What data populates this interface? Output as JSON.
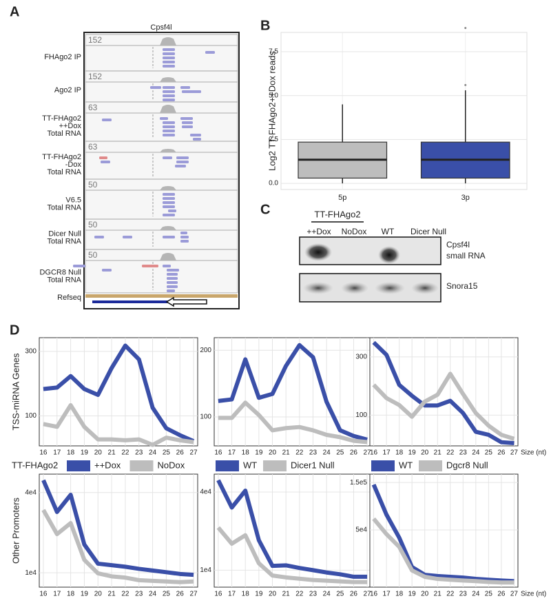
{
  "panel_labels": [
    "A",
    "B",
    "C",
    "D"
  ],
  "browser": {
    "title": "Cpsf4l",
    "refseq_label": "Refseq",
    "tracks": [
      {
        "label": [
          "FHAgo2 IP"
        ],
        "scale": 152
      },
      {
        "label": [
          "Ago2 IP"
        ],
        "scale": 152
      },
      {
        "label": [
          "TT-FHAgo2",
          "++Dox",
          "Total RNA"
        ],
        "scale": 63
      },
      {
        "label": [
          "TT-FHAgo2",
          "-Dox",
          "Total RNA"
        ],
        "scale": 63
      },
      {
        "label": [
          "V6.5",
          "Total RNA"
        ],
        "scale": 50
      },
      {
        "label": [
          "Dicer Null",
          "Total RNA"
        ],
        "scale": 50
      },
      {
        "label": [
          "DGCR8 Null",
          "Total RNA"
        ],
        "scale": 50
      }
    ]
  },
  "gel": {
    "group_label": "TT-FHAgo2",
    "lanes": [
      "++Dox",
      "NoDox",
      "WT",
      "Dicer Null"
    ],
    "bands": [
      [
        "Cpsf4l",
        "small RNA"
      ],
      [
        "Snora15"
      ]
    ]
  },
  "chart_data": [
    {
      "type": "box",
      "ylabel": "Log2 TT-FHAgo2++Dox reads",
      "categories": [
        "5p",
        "3p"
      ],
      "colors": [
        "#bdbdbd",
        "#3a4fa8"
      ],
      "boxes": [
        {
          "min": 0,
          "q1": 0.3,
          "median": 1.35,
          "q3": 2.35,
          "max": 4.5,
          "outliers": []
        },
        {
          "min": 0,
          "q1": 0.3,
          "median": 1.35,
          "q3": 2.35,
          "max": 5.3,
          "outliers": [
            5.6,
            8.85
          ]
        }
      ],
      "ylim": [
        -0.35,
        8.6
      ],
      "yticks": [
        {
          "value": 0,
          "label": "0.0"
        },
        {
          "value": 2.5,
          "label": "2.5"
        },
        {
          "value": 5,
          "label": "5.0"
        },
        {
          "value": 7.5,
          "label": "7.5"
        }
      ],
      "grid": true
    },
    {
      "type": "line",
      "log_y": true,
      "grid": true,
      "legend": "bottom",
      "ylabel": "TSS-miRNA Genes",
      "legend_title": "TT-FHAgo2",
      "x": [
        16,
        17,
        18,
        19,
        20,
        21,
        22,
        23,
        24,
        25,
        26,
        27
      ],
      "xlim": [
        15.7,
        27.3
      ],
      "ylim": [
        60,
        379
      ],
      "yticks": [
        100,
        300
      ],
      "series": [
        {
          "name": "++Dox",
          "color": "#3a4fa8",
          "values": [
            158,
            162,
            197,
            158,
            143,
            226,
            331,
            262,
            115,
            81,
            72,
            65
          ]
        },
        {
          "name": "NoDox",
          "color": "#bdbdbd",
          "values": [
            87,
            83,
            120,
            83,
            67,
            67,
            66,
            67,
            61,
            69,
            66,
            64
          ]
        }
      ]
    },
    {
      "type": "line",
      "log_y": true,
      "grid": true,
      "legend": "bottom",
      "x": [
        16,
        17,
        18,
        19,
        20,
        21,
        22,
        23,
        24,
        25,
        26,
        27
      ],
      "xlim": [
        15.7,
        27.3
      ],
      "ylim": [
        74,
        228
      ],
      "yticks": [
        100,
        200
      ],
      "series": [
        {
          "name": "WT",
          "color": "#3a4fa8",
          "values": [
            118,
            120,
            182,
            122,
            127,
            170,
            211,
            186,
            117,
            87,
            82,
            79
          ]
        },
        {
          "name": "Dicer1 Null",
          "color": "#bdbdbd",
          "values": [
            99,
            99,
            116,
            102,
            87,
            89,
            90,
            87,
            83,
            81,
            78,
            77
          ]
        }
      ]
    },
    {
      "type": "line",
      "log_y": true,
      "grid": true,
      "legend": "bottom",
      "xlabel": "Size (nt)",
      "x": [
        16,
        17,
        18,
        19,
        20,
        21,
        22,
        23,
        24,
        25,
        26,
        27
      ],
      "xlim": [
        15.7,
        27.3
      ],
      "ylim": [
        56,
        431
      ],
      "yticks": [
        100,
        300
      ],
      "series": [
        {
          "name": "WT",
          "color": "#3a4fa8",
          "values": [
            394,
            312,
            177,
            144,
            120,
            120,
            131,
            104,
            73,
            69,
            60,
            59
          ]
        },
        {
          "name": "Dgcr8 Null",
          "color": "#bdbdbd",
          "values": [
            177,
            138,
            121,
            97,
            129,
            147,
            218,
            149,
            104,
            82,
            69,
            64
          ]
        }
      ]
    },
    {
      "type": "line",
      "log_y": true,
      "grid": true,
      "ylabel": "Other Promoters",
      "x": [
        16,
        17,
        18,
        19,
        20,
        21,
        22,
        23,
        24,
        25,
        26,
        27
      ],
      "xlim": [
        15.7,
        27.3
      ],
      "ylim": [
        7800,
        55000
      ],
      "yticks": [
        {
          "value": 10000,
          "label": "1e4"
        },
        {
          "value": 40000,
          "label": "4e4"
        }
      ],
      "series": [
        {
          "color": "#3a4fa8",
          "values": [
            49500,
            28600,
            38500,
            16300,
            11700,
            11400,
            11100,
            10700,
            10400,
            10100,
            9800,
            9650
          ]
        },
        {
          "color": "#bdbdbd",
          "values": [
            29600,
            19500,
            23600,
            12500,
            9900,
            9400,
            9200,
            8800,
            8700,
            8600,
            8500,
            8600
          ]
        }
      ]
    },
    {
      "type": "line",
      "log_y": true,
      "grid": true,
      "x": [
        16,
        17,
        18,
        19,
        20,
        21,
        22,
        23,
        24,
        25,
        26,
        27
      ],
      "xlim": [
        15.7,
        27.3
      ],
      "ylim": [
        7400,
        55000
      ],
      "yticks": [
        {
          "value": 10000,
          "label": "1e4"
        },
        {
          "value": 40000,
          "label": "4e4"
        }
      ],
      "series": [
        {
          "color": "#3a4fa8",
          "values": [
            49400,
            30400,
            41000,
            17000,
            10800,
            10900,
            10400,
            10000,
            9600,
            9300,
            8900,
            8900
          ]
        },
        {
          "color": "#bdbdbd",
          "values": [
            21300,
            16000,
            18600,
            11300,
            9100,
            8800,
            8600,
            8400,
            8300,
            8200,
            8100,
            8100
          ]
        }
      ]
    },
    {
      "type": "line",
      "log_y": true,
      "grid": true,
      "xlabel": "Size (nt)",
      "x": [
        16,
        17,
        18,
        19,
        20,
        21,
        22,
        23,
        24,
        25,
        26,
        27
      ],
      "xlim": [
        15.7,
        27.3
      ],
      "ylim": [
        13300,
        182000
      ],
      "yticks": [
        {
          "value": 50000,
          "label": "5e4"
        },
        {
          "value": 150000,
          "label": "1.5e5"
        }
      ],
      "series": [
        {
          "color": "#3a4fa8",
          "values": [
            142800,
            71300,
            41800,
            21200,
            17700,
            17200,
            16900,
            16600,
            16100,
            15800,
            15500,
            15300
          ]
        },
        {
          "color": "#bdbdbd",
          "values": [
            64800,
            45400,
            33800,
            19600,
            16900,
            16100,
            15800,
            15500,
            15300,
            15000,
            14800,
            14800
          ]
        }
      ]
    }
  ]
}
